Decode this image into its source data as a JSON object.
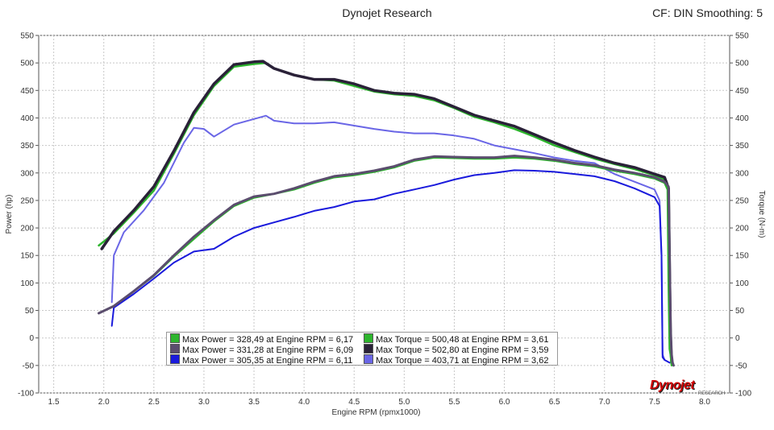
{
  "header": {
    "title": "Dynojet Research",
    "subtitle": "CF: DIN Smoothing: 5"
  },
  "logo": {
    "text": "Dynojet",
    "sub": "RESEARCH"
  },
  "chart_data": {
    "type": "line",
    "xlabel": "Engine RPM (rpmx1000)",
    "ylabel_left": "Power (hp)",
    "ylabel_right": "Torque (N-m)",
    "xlim": [
      1.35,
      8.25
    ],
    "ylim": [
      -100,
      550
    ],
    "x_ticks": [
      "1.5",
      "2.0",
      "2.5",
      "3.0",
      "3.5",
      "4.0",
      "4.5",
      "5.0",
      "5.5",
      "6.0",
      "6.5",
      "7.0",
      "7.5",
      "8.0"
    ],
    "x_tick_values": [
      1.5,
      2.0,
      2.5,
      3.0,
      3.5,
      4.0,
      4.5,
      5.0,
      5.5,
      6.0,
      6.5,
      7.0,
      7.5,
      8.0
    ],
    "y_ticks": [
      "550",
      "500",
      "450",
      "400",
      "350",
      "300",
      "250",
      "200",
      "150",
      "100",
      "50",
      "0",
      "-50",
      "-100"
    ],
    "y_tick_values": [
      550,
      500,
      450,
      400,
      350,
      300,
      250,
      200,
      150,
      100,
      50,
      0,
      -50,
      -100
    ],
    "grid": true,
    "legend_position": "bottom-center",
    "series": [
      {
        "kind": "power",
        "color": "#2db52d",
        "width": 2.5,
        "x": [
          1.95,
          2.1,
          2.3,
          2.5,
          2.7,
          2.9,
          3.1,
          3.3,
          3.5,
          3.7,
          3.9,
          4.1,
          4.3,
          4.5,
          4.7,
          4.9,
          5.1,
          5.3,
          5.5,
          5.7,
          5.9,
          6.1,
          6.3,
          6.5,
          6.7,
          6.9,
          7.1,
          7.3,
          7.5,
          7.6,
          7.63,
          7.64,
          7.65,
          7.66,
          7.67
        ],
        "y": [
          45,
          58,
          85,
          113,
          148,
          180,
          212,
          240,
          255,
          262,
          270,
          282,
          292,
          296,
          302,
          310,
          322,
          328,
          327,
          326,
          326,
          328,
          326,
          322,
          316,
          312,
          304,
          298,
          290,
          282,
          270,
          100,
          -20,
          -30,
          -50
        ]
      },
      {
        "kind": "power",
        "color": "#5b4d6e",
        "width": 3,
        "x": [
          1.95,
          2.1,
          2.3,
          2.5,
          2.7,
          2.9,
          3.1,
          3.3,
          3.5,
          3.7,
          3.9,
          4.1,
          4.3,
          4.5,
          4.7,
          4.9,
          5.1,
          5.3,
          5.5,
          5.7,
          5.9,
          6.1,
          6.3,
          6.5,
          6.7,
          6.9,
          7.1,
          7.3,
          7.5,
          7.6,
          7.64,
          7.65,
          7.66,
          7.67,
          7.68,
          7.69
        ],
        "y": [
          45,
          58,
          85,
          114,
          150,
          184,
          214,
          242,
          257,
          262,
          272,
          284,
          294,
          298,
          304,
          312,
          324,
          330,
          329,
          328,
          328,
          331,
          328,
          324,
          318,
          314,
          306,
          300,
          292,
          284,
          275,
          150,
          20,
          -30,
          -45,
          -50
        ]
      },
      {
        "kind": "power",
        "color": "#1a1adc",
        "width": 2,
        "x": [
          2.08,
          2.1,
          2.3,
          2.5,
          2.7,
          2.9,
          3.1,
          3.3,
          3.5,
          3.7,
          3.9,
          4.1,
          4.3,
          4.5,
          4.7,
          4.9,
          5.1,
          5.3,
          5.5,
          5.7,
          5.9,
          6.1,
          6.3,
          6.5,
          6.7,
          6.9,
          7.1,
          7.3,
          7.5,
          7.55,
          7.57,
          7.58,
          7.6,
          7.65
        ],
        "y": [
          22,
          55,
          80,
          108,
          137,
          157,
          162,
          184,
          200,
          210,
          220,
          231,
          238,
          248,
          252,
          262,
          270,
          278,
          288,
          296,
          300,
          305,
          304,
          302,
          298,
          294,
          285,
          272,
          256,
          240,
          150,
          -35,
          -40,
          -45
        ]
      },
      {
        "kind": "torque",
        "color": "#2db52d",
        "width": 2.5,
        "x": [
          1.95,
          2.1,
          2.3,
          2.5,
          2.7,
          2.9,
          3.1,
          3.3,
          3.5,
          3.61,
          3.7,
          3.9,
          4.1,
          4.3,
          4.5,
          4.7,
          4.9,
          5.1,
          5.3,
          5.5,
          5.7,
          5.9,
          6.1,
          6.3,
          6.5,
          6.7,
          6.9,
          7.1,
          7.3,
          7.5,
          7.6,
          7.64,
          7.65,
          7.66,
          7.67
        ],
        "y": [
          168,
          190,
          228,
          268,
          335,
          405,
          458,
          493,
          498,
          500,
          490,
          478,
          470,
          468,
          458,
          448,
          443,
          440,
          432,
          418,
          402,
          392,
          380,
          366,
          350,
          338,
          326,
          316,
          307,
          296,
          288,
          270,
          150,
          20,
          -40
        ]
      },
      {
        "kind": "torque",
        "color": "#2a2138",
        "width": 3.5,
        "x": [
          1.98,
          2.1,
          2.3,
          2.5,
          2.7,
          2.9,
          3.1,
          3.3,
          3.5,
          3.59,
          3.7,
          3.9,
          4.1,
          4.3,
          4.5,
          4.7,
          4.9,
          5.1,
          5.3,
          5.5,
          5.7,
          5.9,
          6.1,
          6.3,
          6.5,
          6.7,
          6.9,
          7.1,
          7.3,
          7.5,
          7.6,
          7.64,
          7.65,
          7.66,
          7.67
        ],
        "y": [
          162,
          194,
          232,
          275,
          340,
          410,
          462,
          497,
          502,
          503,
          490,
          478,
          470,
          470,
          462,
          450,
          445,
          443,
          435,
          420,
          405,
          395,
          385,
          370,
          355,
          341,
          329,
          318,
          310,
          298,
          292,
          272,
          120,
          0,
          -45
        ]
      },
      {
        "kind": "torque",
        "color": "#6a66e6",
        "width": 2,
        "x": [
          2.08,
          2.1,
          2.2,
          2.4,
          2.6,
          2.8,
          2.9,
          3.0,
          3.1,
          3.3,
          3.5,
          3.62,
          3.7,
          3.9,
          4.1,
          4.3,
          4.5,
          4.7,
          4.9,
          5.1,
          5.3,
          5.5,
          5.7,
          5.9,
          6.1,
          6.3,
          6.5,
          6.7,
          6.9,
          7.1,
          7.3,
          7.5,
          7.55,
          7.57,
          7.58,
          7.6
        ],
        "y": [
          65,
          150,
          192,
          232,
          282,
          355,
          382,
          380,
          366,
          388,
          398,
          404,
          395,
          390,
          390,
          392,
          386,
          380,
          375,
          372,
          372,
          368,
          362,
          350,
          343,
          336,
          328,
          322,
          318,
          298,
          284,
          270,
          250,
          150,
          -30,
          -40
        ]
      }
    ],
    "legend": [
      {
        "label": "Max Power = 328,49 at Engine RPM = 6,17",
        "color": "#2db52d"
      },
      {
        "label": "Max Power = 331,28 at Engine RPM = 6,09",
        "color": "#5b4d6e"
      },
      {
        "label": "Max Power = 305,35 at Engine RPM = 6,11",
        "color": "#1a1adc"
      },
      {
        "label": "Max Torque = 500,48 at Engine RPM = 3,61",
        "color": "#2db52d"
      },
      {
        "label": "Max Torque = 502,80 at Engine RPM = 3,59",
        "color": "#2a2138"
      },
      {
        "label": "Max Torque = 403,71 at Engine RPM = 3,62",
        "color": "#6a66e6"
      }
    ]
  }
}
